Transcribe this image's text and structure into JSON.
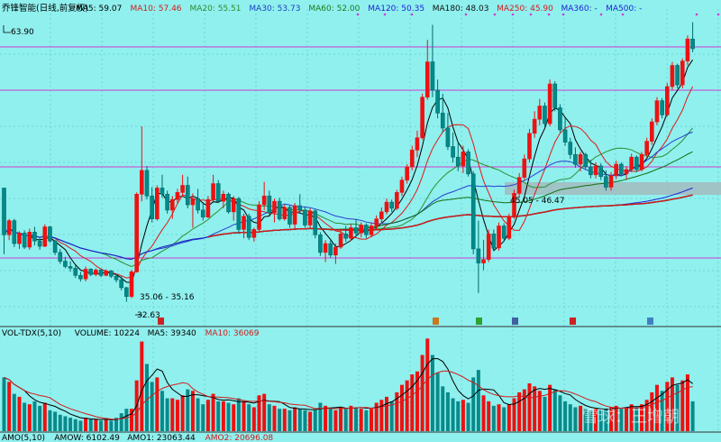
{
  "price_panel": {
    "stock_name": "乔锋智能(日线,前复权)",
    "ma_labels": [
      {
        "text": "MA5: 59.07",
        "color": "#000000"
      },
      {
        "text": "MA10: 57.46",
        "color": "#d61a1a"
      },
      {
        "text": "MA20: 55.51",
        "color": "#2e8b2e"
      },
      {
        "text": "MA30: 53.73",
        "color": "#1f3fbf"
      },
      {
        "text": "MA60: 52.00",
        "color": "#1a7a1a"
      },
      {
        "text": "MA120: 50.35",
        "color": "#1f1fd6"
      },
      {
        "text": "MA180: 48.03",
        "color": "#111111"
      },
      {
        "text": "MA250: 45.90",
        "color": "#d61a1a"
      },
      {
        "text": "MA360: -",
        "color": "#1f1fd6"
      },
      {
        "text": "MA500: -",
        "color": "#1f1fd6"
      }
    ],
    "annotations": {
      "high_price": "63.90",
      "low_price": "32.63",
      "zone_low": "35.06 - 35.16",
      "zone_mid": "45.05 - 46.47"
    }
  },
  "volume_panel": {
    "labels": [
      {
        "text": "VOL-TDX(5,10)",
        "color": "#000000"
      },
      {
        "text": "VOLUME: 10224",
        "color": "#000000"
      },
      {
        "text": "MA5: 39340",
        "color": "#000000"
      },
      {
        "text": "MA10: 36069",
        "color": "#d61a1a"
      }
    ],
    "amo_labels": [
      {
        "text": "AMO(5,10)",
        "color": "#000000"
      },
      {
        "text": "AMOW: 6102.49",
        "color": "#000000"
      },
      {
        "text": "AMO1: 23063.44",
        "color": "#000000"
      },
      {
        "text": "AMO2: 20696.08",
        "color": "#d61a1a"
      }
    ]
  },
  "watermark": "雪球：王增朝",
  "chart_data": {
    "type": "candlestick",
    "title": "乔锋智能(日线,前复权)",
    "ylim": [
      30,
      66
    ],
    "high_marked": 63.9,
    "low_marked": 32.63,
    "series": [
      {
        "name": "price",
        "ohlc": [
          [
            45.5,
            45.5,
            38.0,
            40.2
          ],
          [
            40.2,
            42.0,
            39.6,
            41.8
          ],
          [
            41.8,
            42.0,
            38.8,
            39.2
          ],
          [
            39.2,
            40.6,
            38.6,
            40.4
          ],
          [
            40.4,
            40.7,
            38.6,
            38.8
          ],
          [
            38.8,
            40.9,
            38.5,
            40.5
          ],
          [
            40.5,
            41.1,
            39.0,
            39.5
          ],
          [
            39.5,
            39.9,
            38.5,
            38.9
          ],
          [
            38.9,
            41.4,
            38.8,
            41.1
          ],
          [
            41.1,
            41.2,
            39.3,
            39.5
          ],
          [
            39.5,
            39.6,
            37.9,
            38.2
          ],
          [
            38.2,
            38.6,
            36.9,
            37.2
          ],
          [
            37.2,
            37.7,
            36.4,
            36.6
          ],
          [
            36.6,
            37.2,
            36.0,
            36.4
          ],
          [
            36.4,
            36.7,
            35.3,
            35.6
          ],
          [
            35.6,
            36.0,
            34.9,
            35.2
          ],
          [
            35.2,
            36.6,
            34.9,
            36.3
          ],
          [
            36.3,
            36.4,
            35.5,
            35.7
          ],
          [
            35.7,
            36.4,
            35.5,
            36.2
          ],
          [
            36.2,
            36.4,
            35.4,
            35.6
          ],
          [
            35.6,
            36.3,
            35.5,
            36.1
          ],
          [
            36.1,
            36.2,
            35.3,
            35.5
          ],
          [
            35.5,
            35.8,
            34.8,
            35.1
          ],
          [
            35.1,
            35.5,
            33.9,
            34.2
          ],
          [
            34.2,
            34.3,
            32.6,
            33.2
          ],
          [
            33.2,
            36.2,
            33.0,
            36.0
          ],
          [
            36.0,
            45.0,
            35.9,
            44.8
          ],
          [
            44.8,
            52.5,
            44.0,
            47.5
          ],
          [
            47.5,
            48.0,
            44.2,
            44.6
          ],
          [
            44.6,
            45.6,
            41.6,
            42.0
          ],
          [
            42.0,
            45.8,
            41.8,
            45.5
          ],
          [
            45.5,
            47.0,
            44.4,
            44.8
          ],
          [
            44.8,
            45.2,
            42.6,
            43.0
          ],
          [
            43.0,
            44.6,
            42.0,
            44.2
          ],
          [
            44.2,
            45.4,
            43.8,
            45.0
          ],
          [
            45.0,
            47.0,
            44.5,
            45.8
          ],
          [
            45.8,
            46.8,
            43.2,
            43.6
          ],
          [
            43.6,
            44.9,
            41.0,
            44.3
          ],
          [
            44.3,
            45.4,
            42.6,
            43.0
          ],
          [
            43.0,
            43.9,
            41.8,
            42.2
          ],
          [
            42.2,
            44.6,
            42.1,
            44.2
          ],
          [
            44.2,
            47.0,
            44.0,
            46.0
          ],
          [
            46.0,
            46.4,
            43.8,
            44.0
          ],
          [
            44.0,
            45.2,
            43.2,
            44.8
          ],
          [
            44.8,
            45.0,
            42.6,
            42.8
          ],
          [
            42.8,
            44.6,
            41.8,
            44.3
          ],
          [
            44.3,
            44.5,
            40.4,
            40.8
          ],
          [
            40.8,
            42.6,
            39.8,
            42.3
          ],
          [
            42.3,
            42.6,
            39.6,
            39.9
          ],
          [
            39.9,
            41.0,
            39.4,
            40.8
          ],
          [
            40.8,
            44.0,
            40.6,
            43.6
          ],
          [
            43.6,
            46.2,
            43.0,
            44.6
          ],
          [
            44.6,
            45.2,
            42.4,
            42.7
          ],
          [
            42.7,
            44.3,
            41.6,
            44.0
          ],
          [
            44.0,
            44.4,
            41.8,
            42.0
          ],
          [
            42.0,
            43.6,
            41.8,
            43.3
          ],
          [
            43.3,
            43.5,
            41.0,
            41.4
          ],
          [
            41.4,
            43.8,
            40.8,
            43.5
          ],
          [
            43.5,
            44.8,
            42.6,
            43.0
          ],
          [
            43.0,
            43.4,
            41.0,
            41.3
          ],
          [
            41.3,
            43.2,
            41.0,
            42.9
          ],
          [
            42.9,
            43.1,
            39.8,
            40.2
          ],
          [
            40.2,
            40.5,
            37.8,
            38.2
          ],
          [
            38.2,
            39.6,
            37.1,
            39.2
          ],
          [
            39.2,
            39.6,
            37.6,
            37.9
          ],
          [
            37.9,
            39.2,
            36.9,
            38.8
          ],
          [
            38.8,
            40.8,
            38.6,
            40.3
          ],
          [
            40.3,
            41.2,
            39.4,
            39.8
          ],
          [
            39.8,
            41.4,
            39.5,
            41.0
          ],
          [
            41.0,
            42.0,
            40.0,
            40.4
          ],
          [
            40.4,
            41.6,
            39.9,
            41.3
          ],
          [
            41.3,
            41.5,
            39.8,
            40.2
          ],
          [
            40.2,
            41.6,
            39.9,
            41.2
          ],
          [
            41.2,
            42.4,
            40.8,
            42.0
          ],
          [
            42.0,
            43.3,
            41.4,
            42.8
          ],
          [
            42.8,
            44.3,
            42.5,
            43.9
          ],
          [
            43.9,
            44.2,
            42.8,
            43.2
          ],
          [
            43.2,
            45.3,
            43.0,
            45.0
          ],
          [
            45.0,
            46.8,
            44.6,
            46.4
          ],
          [
            46.4,
            48.2,
            46.0,
            47.9
          ],
          [
            47.9,
            50.3,
            47.5,
            49.8
          ],
          [
            49.8,
            52.0,
            49.0,
            51.2
          ],
          [
            51.2,
            56.2,
            51.0,
            55.8
          ],
          [
            55.8,
            62.3,
            55.5,
            59.8
          ],
          [
            59.8,
            64.0,
            55.8,
            56.6
          ],
          [
            56.6,
            57.8,
            53.4,
            54.0
          ],
          [
            54.0,
            56.2,
            51.8,
            52.3
          ],
          [
            52.3,
            54.0,
            49.8,
            50.2
          ],
          [
            50.2,
            51.8,
            48.4,
            49.0
          ],
          [
            49.0,
            50.6,
            47.4,
            48.0
          ],
          [
            48.0,
            50.3,
            47.2,
            49.6
          ],
          [
            49.6,
            49.9,
            46.8,
            47.1
          ],
          [
            47.1,
            47.4,
            38.0,
            38.6
          ],
          [
            38.6,
            41.8,
            33.6,
            37.0
          ],
          [
            37.0,
            39.6,
            36.2,
            37.4
          ],
          [
            37.4,
            40.8,
            37.1,
            40.3
          ],
          [
            40.3,
            40.8,
            38.4,
            38.7
          ],
          [
            38.7,
            41.6,
            38.4,
            41.2
          ],
          [
            41.2,
            41.5,
            39.4,
            39.8
          ],
          [
            39.8,
            42.6,
            39.6,
            42.3
          ],
          [
            42.3,
            45.3,
            42.0,
            44.9
          ],
          [
            44.9,
            47.2,
            44.4,
            46.7
          ],
          [
            46.7,
            49.3,
            46.4,
            48.8
          ],
          [
            48.8,
            52.2,
            48.4,
            51.7
          ],
          [
            51.7,
            54.2,
            51.2,
            53.3
          ],
          [
            53.3,
            55.6,
            52.6,
            54.8
          ],
          [
            54.8,
            55.2,
            52.4,
            52.8
          ],
          [
            52.8,
            57.8,
            52.5,
            57.3
          ],
          [
            57.3,
            57.6,
            54.2,
            54.6
          ],
          [
            54.6,
            55.0,
            51.8,
            52.1
          ],
          [
            52.1,
            53.4,
            50.3,
            50.7
          ],
          [
            50.7,
            51.2,
            48.8,
            49.3
          ],
          [
            49.3,
            50.1,
            47.8,
            48.2
          ],
          [
            48.2,
            49.6,
            47.4,
            49.3
          ],
          [
            49.3,
            49.5,
            47.6,
            47.9
          ],
          [
            47.9,
            48.7,
            46.6,
            47.0
          ],
          [
            47.0,
            48.4,
            46.6,
            48.0
          ],
          [
            48.0,
            48.3,
            46.4,
            46.8
          ],
          [
            46.8,
            47.5,
            45.2,
            45.6
          ],
          [
            45.6,
            47.3,
            45.2,
            46.9
          ],
          [
            46.9,
            48.6,
            46.5,
            48.2
          ],
          [
            48.2,
            48.4,
            46.8,
            47.1
          ],
          [
            47.1,
            48.0,
            46.4,
            47.6
          ],
          [
            47.6,
            49.4,
            47.3,
            49.0
          ],
          [
            49.0,
            49.2,
            47.3,
            47.6
          ],
          [
            47.6,
            49.6,
            47.4,
            49.3
          ],
          [
            49.3,
            51.2,
            49.0,
            50.8
          ],
          [
            50.8,
            53.4,
            50.4,
            53.0
          ],
          [
            53.0,
            55.8,
            52.6,
            55.4
          ],
          [
            55.4,
            55.7,
            53.4,
            53.8
          ],
          [
            53.8,
            57.4,
            53.6,
            57.0
          ],
          [
            57.0,
            59.8,
            56.6,
            59.4
          ],
          [
            59.4,
            59.6,
            56.8,
            57.2
          ],
          [
            57.2,
            60.2,
            56.8,
            59.9
          ],
          [
            59.9,
            62.8,
            59.4,
            62.4
          ],
          [
            62.4,
            64.3,
            60.9,
            61.3
          ]
        ]
      }
    ],
    "ma_series": [
      "MA5",
      "MA10",
      "MA20",
      "MA30",
      "MA60",
      "MA120",
      "MA180",
      "MA250"
    ],
    "volume": [
      36,
      33,
      25,
      23,
      19,
      18,
      20,
      17,
      19,
      14,
      13,
      11,
      10,
      9,
      8,
      7,
      9,
      8,
      8,
      7,
      8,
      7,
      9,
      12,
      15,
      15,
      34,
      60,
      45,
      33,
      36,
      27,
      22,
      22,
      21,
      24,
      28,
      27,
      22,
      18,
      21,
      25,
      20,
      20,
      19,
      18,
      22,
      20,
      18,
      16,
      24,
      25,
      18,
      17,
      15,
      15,
      14,
      16,
      15,
      14,
      13,
      14,
      19,
      17,
      15,
      14,
      16,
      15,
      17,
      16,
      15,
      14,
      15,
      19,
      21,
      23,
      20,
      26,
      31,
      34,
      38,
      40,
      51,
      62,
      51,
      39,
      30,
      26,
      22,
      20,
      21,
      19,
      36,
      41,
      24,
      20,
      17,
      18,
      16,
      18,
      22,
      26,
      28,
      32,
      30,
      27,
      23,
      31,
      28,
      24,
      20,
      18,
      16,
      17,
      15,
      14,
      15,
      14,
      15,
      16,
      17,
      15,
      16,
      18,
      16,
      18,
      21,
      26,
      31,
      27,
      33,
      36,
      31,
      34,
      38,
      20
    ]
  }
}
